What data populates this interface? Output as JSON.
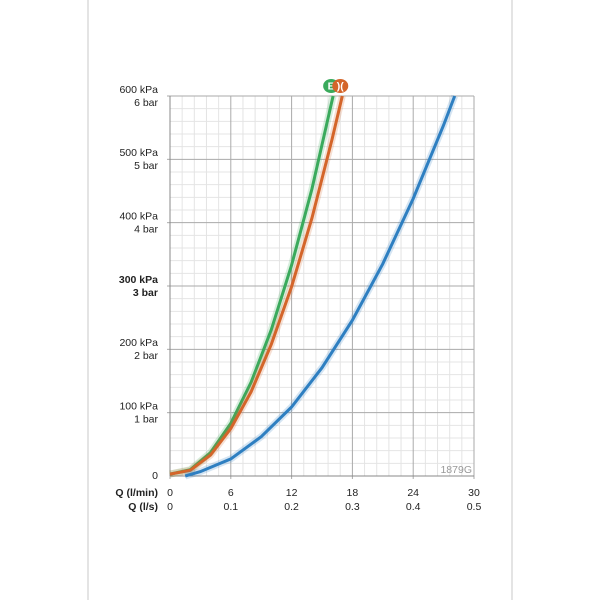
{
  "chart_data": {
    "type": "line",
    "annotation": "1879G",
    "xlabel": "Q (l/min)",
    "x2label": "Q (l/s)",
    "xlim": [
      0,
      30
    ],
    "xticks": [
      0,
      6,
      12,
      18,
      24,
      30
    ],
    "x2lim": [
      0,
      0.5
    ],
    "x2ticks": [
      0,
      0.1,
      0.2,
      0.3,
      0.4,
      0.5
    ],
    "ylim": [
      0,
      600
    ],
    "yticks": [
      0,
      {
        "value": 100,
        "label": "100 kPa"
      },
      {
        "value": 200,
        "label": "200 kPa"
      },
      {
        "value": 300,
        "label": "300 kPa"
      },
      {
        "value": 400,
        "label": "400 kPa"
      },
      {
        "value": 500,
        "label": "500 kPa"
      },
      {
        "value": 600,
        "label": "600 kPa"
      }
    ],
    "y2lim": [
      0,
      6
    ],
    "y2ticks": [
      {
        "value": 1,
        "label": "1 bar"
      },
      {
        "value": 2,
        "label": "2 bar"
      },
      {
        "value": 3,
        "label": "3 bar"
      },
      {
        "value": 4,
        "label": "4 bar"
      },
      {
        "value": 5,
        "label": "5 bar"
      },
      {
        "value": 6,
        "label": "6 bar"
      }
    ],
    "bold_ytick": 300,
    "grid": true,
    "minor_divisions": 5,
    "series": [
      {
        "name": "E",
        "color": "#3aaa5c",
        "x": [
          0,
          2,
          4,
          6,
          8,
          10,
          12,
          14,
          16.1
        ],
        "values": [
          3,
          10,
          37,
          83,
          148,
          231,
          333,
          453,
          600
        ]
      },
      {
        "name": ")(",
        "color": "#d4652a",
        "x": [
          0,
          2,
          4,
          6,
          8,
          10,
          12,
          14,
          16,
          17
        ],
        "values": [
          3,
          9,
          33,
          75,
          133,
          208,
          299,
          407,
          532,
          600
        ]
      },
      {
        "color": "#2e7fc1",
        "x": [
          1.5,
          3,
          6,
          9,
          12,
          15,
          18,
          21,
          24,
          27,
          28.1
        ],
        "values": [
          0,
          7,
          27,
          62,
          109,
          171,
          246,
          335,
          438,
          554,
          600
        ]
      }
    ]
  }
}
